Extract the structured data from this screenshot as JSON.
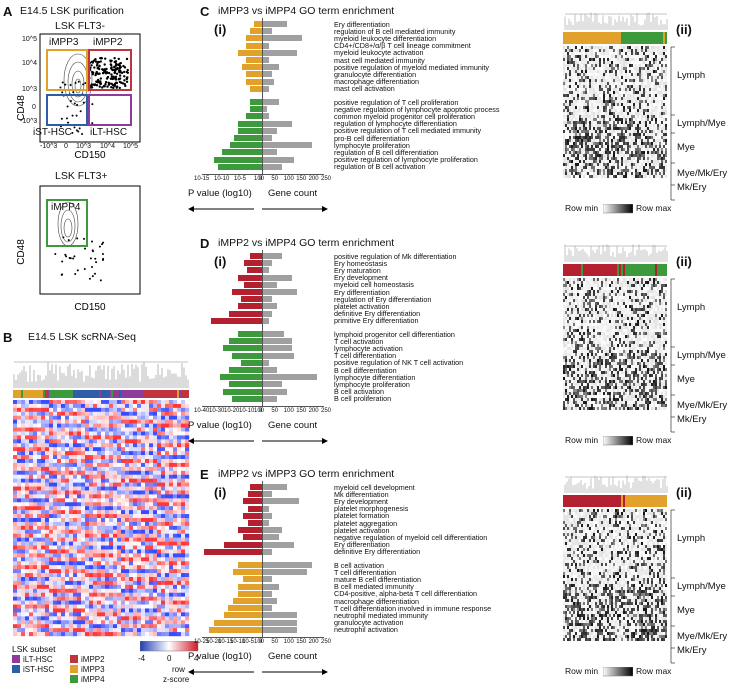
{
  "panel_a": {
    "letter": "A",
    "title": "E14.5 LSK purification",
    "plot1_title": "LSK FLT3-",
    "plot1_gates": [
      "iMPP3",
      "iMPP2",
      "iST-HSC",
      "iLT-HSC"
    ],
    "plot2_title": "LSK FLT3+",
    "plot2_gate": "iMPP4",
    "ylabel": "CD48",
    "xlabel": "CD150",
    "y_ticks": [
      "10^5",
      "10^4",
      "10^3",
      "0",
      "-10^3"
    ],
    "x_ticks": [
      "-10^3",
      "0",
      "10^3",
      "10^4",
      "10^5"
    ]
  },
  "panel_b": {
    "letter": "B",
    "title": "E14.5 LSK scRNA-Seq",
    "legend_title": "LSK subset",
    "subsets": [
      {
        "name": "iLT-HSC",
        "color": "#8e3b9b"
      },
      {
        "name": "iST-HSC",
        "color": "#2f5ea8"
      },
      {
        "name": "iMPP2",
        "color": "#c0343e"
      },
      {
        "name": "iMPP3",
        "color": "#e2a12b"
      },
      {
        "name": "iMPP4",
        "color": "#3c9a3c"
      }
    ],
    "scale_ticks": [
      "-4",
      "0",
      "4"
    ],
    "scale_label1": "row",
    "scale_label2": "z-score"
  },
  "chart_data": [
    {
      "type": "bar",
      "panel": "C",
      "title": "iMPP3 vs iMPP4 GO term enrichment",
      "sub": "(i)",
      "categories": [
        "Ery differentiation",
        "regulation of B cell mediated immunity",
        "myeloid leukocyte differentiation",
        "CD4+/CD8+/α/β T cell lineage commitment",
        "myeloid leukocyte activation",
        "mast cell mediated immunity",
        "positive regulation of myeloid mediated immunity",
        "granulocyte differentiation",
        "macrophage differentiation",
        "mast cell activation",
        "positive regulation of T cell proliferation",
        "negative regulation of lymphocyte apoptotic process",
        "common myeloid progenitor cell proliferation",
        "regulation of lymphocyte differentiation",
        "positive regulation of T cell mediated immunity",
        "pro-B cell differentiation",
        "lymphocyte proliferation",
        "regulation of B cell differentiation",
        "positive regulation of lymphocyte proliferation",
        "regulation of B cell activation"
      ],
      "group1_name": "iMPP3",
      "group1_color": "#e2a12b",
      "group1_n": 10,
      "group2_name": "iMPP4",
      "group2_color": "#3c9a3c",
      "log10_p": [
        -2,
        -3,
        -4,
        -4,
        -6,
        -4,
        -5,
        -4,
        -4,
        -3,
        -3,
        -3,
        -4,
        -6,
        -6,
        -7,
        -8,
        -10,
        -12,
        -11
      ],
      "gene_count": [
        100,
        40,
        160,
        30,
        140,
        30,
        70,
        40,
        50,
        30,
        70,
        20,
        30,
        120,
        60,
        40,
        200,
        60,
        130,
        80
      ],
      "p_ticks": [
        "10^-15",
        "10^-10",
        "10^-5",
        "10^0"
      ],
      "p_range": [
        -15,
        0
      ],
      "count_ticks": [
        "0",
        "50",
        "100",
        "150",
        "200",
        "250"
      ],
      "count_range": [
        0,
        250
      ],
      "xlabel_p": "P value (log10)",
      "xlabel_count": "Gene count"
    },
    {
      "type": "bar",
      "panel": "D",
      "title": "iMPP2 vs iMPP4 GO term enrichment",
      "sub": "(i)",
      "categories": [
        "positive regulation of Mk differentiation",
        "Ery homeostasis",
        "Ery maturation",
        "Ery development",
        "myeloid cell homeostasis",
        "Ery differentiation",
        "regulation of Ery differentiation",
        "platelet activation",
        "definitive Ery differentiation",
        "primitive Ery differentiation",
        "lymphoid progenitor cell differentiation",
        "T cell activation",
        "lymphocyte activation",
        "T cell differentiation",
        "positive regulation of NK T cell activation",
        "B cell differentiation",
        "lymphocyte differentiation",
        "lymphocyte proliferation",
        "B cell activation",
        "B cell proliferation"
      ],
      "group1_name": "iMPP2",
      "group1_color": "#b3202f",
      "group1_n": 10,
      "group2_name": "iMPP4",
      "group2_color": "#3c9a3c",
      "log10_p": [
        -8,
        -12,
        -10,
        -16,
        -12,
        -20,
        -14,
        -16,
        -22,
        -34,
        -16,
        -22,
        -26,
        -20,
        -14,
        -22,
        -28,
        -22,
        -26,
        -20
      ],
      "gene_count": [
        80,
        40,
        30,
        120,
        60,
        140,
        40,
        60,
        40,
        30,
        90,
        120,
        120,
        130,
        30,
        60,
        220,
        80,
        100,
        60
      ],
      "p_ticks": [
        "10^-40",
        "10^-30",
        "10^-20",
        "10^-10",
        "10^0"
      ],
      "p_range": [
        -40,
        0
      ],
      "count_ticks": [
        "0",
        "50",
        "100",
        "150",
        "200",
        "250"
      ],
      "count_range": [
        0,
        250
      ],
      "xlabel_p": "P value (log10)",
      "xlabel_count": "Gene count"
    },
    {
      "type": "bar",
      "panel": "E",
      "title": "iMPP2 vs iMPP3 GO term enrichment",
      "sub": "(i)",
      "categories": [
        "myeloid cell development",
        "Mk differentiation",
        "Ery development",
        "platelet morphogenesis",
        "platelet formation",
        "platelet aggregation",
        "platelet activation",
        "negative regulation of myeloid cell differentiation",
        "Ery differentiation",
        "definitive Ery differentiation",
        "B cell activation",
        "T cell differentiation",
        "mature B cell differentiation",
        "B cell mediated immunity",
        "CD4-positive, alpha-beta T cell differentiation",
        "macrophage differentiation",
        "T cell differentiation involved in immune response",
        "neutrophil mediated immunity",
        "granulocyte activation",
        "neutrophil activation"
      ],
      "group1_name": "iMPP2",
      "group1_color": "#b3202f",
      "group1_n": 10,
      "group2_name": "iMPP3",
      "group2_color": "#e2a12b",
      "log10_p": [
        -5,
        -6,
        -8,
        -6,
        -8,
        -6,
        -10,
        -8,
        -16,
        -24,
        -10,
        -12,
        -8,
        -10,
        -10,
        -12,
        -14,
        -16,
        -20,
        -22
      ],
      "gene_count": [
        100,
        40,
        150,
        30,
        40,
        30,
        80,
        70,
        130,
        40,
        200,
        180,
        40,
        70,
        40,
        60,
        40,
        140,
        140,
        140
      ],
      "p_ticks": [
        "10^-25",
        "10^-20",
        "10^-15",
        "10^-10",
        "10^-5",
        "10^0"
      ],
      "p_range": [
        -25,
        0
      ],
      "count_ticks": [
        "0",
        "50",
        "100",
        "150",
        "200",
        "250"
      ],
      "count_range": [
        0,
        250
      ],
      "xlabel_p": "P value (log10)",
      "xlabel_count": "Gene count"
    }
  ],
  "heatmaps": [
    {
      "panel": "C",
      "sub": "(ii)",
      "groups": [
        "Lymph",
        "Lymph/Mye",
        "Mye",
        "Mye/Mk/Ery",
        "Mk/Ery"
      ],
      "row_min": "Row min",
      "row_max": "Row max",
      "c1": "#e2a12b",
      "c2": "#3c9a3c"
    },
    {
      "panel": "D",
      "sub": "(ii)",
      "groups": [
        "Lymph",
        "Lymph/Mye",
        "Mye",
        "Mye/Mk/Ery",
        "Mk/Ery"
      ],
      "row_min": "Row min",
      "row_max": "Row max",
      "c1": "#b3202f",
      "c2": "#3c9a3c"
    },
    {
      "panel": "E",
      "sub": "(ii)",
      "groups": [
        "Lymph",
        "Lymph/Mye",
        "Mye",
        "Mye/Mk/Ery",
        "Mk/Ery"
      ],
      "row_min": "Row min",
      "row_max": "Row max",
      "c1": "#b3202f",
      "c2": "#e2a12b"
    }
  ]
}
